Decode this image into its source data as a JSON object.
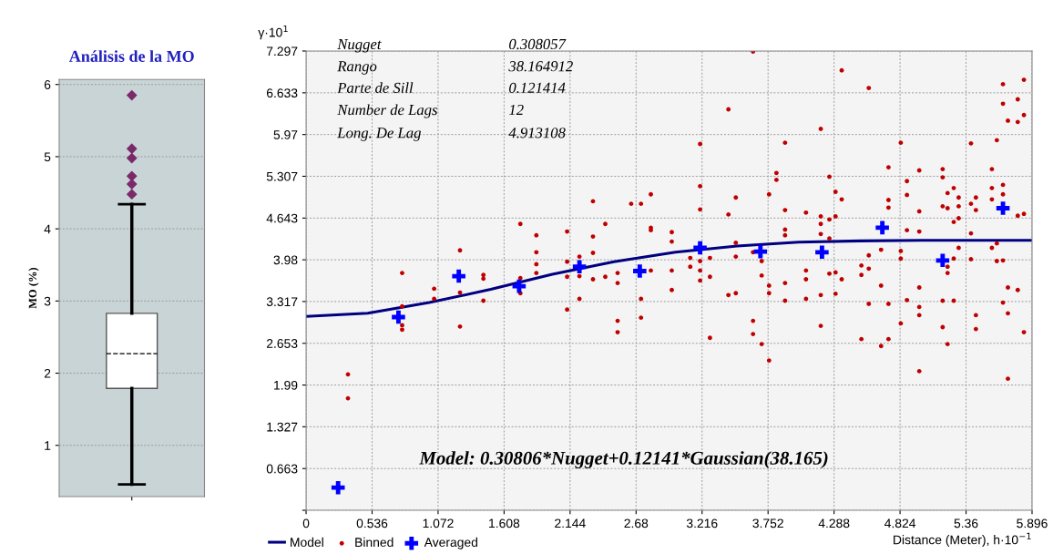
{
  "chart_data": [
    {
      "type": "box",
      "title": "Análisis de la MO",
      "ylabel": "MO (%)",
      "categories": [
        null
      ],
      "boxes": [
        {
          "low": 0.46,
          "q1": 1.79,
          "median": 2.27,
          "q3": 2.83,
          "high": 4.34,
          "outliers": [
            5.85,
            5.11,
            4.98,
            4.73,
            4.62,
            4.48
          ]
        }
      ],
      "ylim": [
        0.29,
        6.07
      ],
      "yticks": [
        1,
        2,
        3,
        4,
        5,
        6
      ],
      "grid": "y",
      "tick_labels": "y"
    },
    {
      "type": "scatter",
      "xlabel": "Distance (Meter), h·10$^{−1}$",
      "ylabel": "γ·10$^{1}$",
      "xlim": [
        0,
        5.896
      ],
      "xticks": [
        0,
        0.536,
        1.072,
        1.608,
        2.144,
        2.68,
        3.216,
        3.752,
        4.288,
        4.824,
        5.36,
        5.896
      ],
      "ylim": [
        0,
        7.297
      ],
      "yticks": [
        {
          "value": 0,
          "label": null
        },
        0.663,
        1.327,
        1.99,
        2.653,
        3.317,
        3.98,
        4.643,
        5.307,
        5.97,
        6.633,
        7.297
      ],
      "grid": true,
      "legend": "bottom",
      "annotations": [
        "Nugget",
        "0.308057",
        "Rango",
        "38.164912",
        "Parte de Sill",
        "0.121414",
        "Number de Lags",
        "12",
        "Long. De Lag",
        "4.913108",
        "Model: 0.30806*Nugget+0.12141*Gaussian(38.165)"
      ],
      "series": [
        {
          "name": "Model",
          "type": "line",
          "color": "#000080",
          "marker": "none",
          "x": [
            0,
            0.5,
            1.0,
            1.5,
            2.0,
            2.5,
            3.0,
            3.5,
            4.0,
            4.5,
            5.0,
            5.896
          ],
          "values": [
            3.08,
            3.13,
            3.3,
            3.51,
            3.75,
            3.95,
            4.1,
            4.2,
            4.26,
            4.28,
            4.29,
            4.29
          ]
        },
        {
          "name": "Binned",
          "type": "scatter",
          "color": "#c00000",
          "marker": "circle",
          "x": [
            0.34,
            0.34,
            0.78,
            0.78,
            0.78,
            0.78,
            1.04,
            1.04,
            1.25,
            1.25,
            1.25,
            1.44,
            1.44,
            1.44,
            1.74,
            1.74,
            1.74,
            1.87,
            1.87,
            1.87,
            1.87,
            2.12,
            2.12,
            2.12,
            2.12,
            2.22,
            2.22,
            2.22,
            2.33,
            2.33,
            2.33,
            2.33,
            2.43,
            2.43,
            2.53,
            2.53,
            2.53,
            2.53,
            2.64,
            2.72,
            2.72,
            2.72,
            2.8,
            2.8,
            2.8,
            2.8,
            2.97,
            2.97,
            2.97,
            2.97,
            3.12,
            3.12,
            3.2,
            3.2,
            3.2,
            3.2,
            3.2,
            3.2,
            3.28,
            3.28,
            3.28,
            3.43,
            3.43,
            3.43,
            3.49,
            3.49,
            3.49,
            3.49,
            3.63,
            3.63,
            3.63,
            3.63,
            3.7,
            3.7,
            3.7,
            3.76,
            3.76,
            3.76,
            3.76,
            3.82,
            3.82,
            3.89,
            3.89,
            3.89,
            3.89,
            3.89,
            3.89,
            4.06,
            4.06,
            4.06,
            4.06,
            4.18,
            4.18,
            4.18,
            4.18,
            4.18,
            4.18,
            4.25,
            4.25,
            4.25,
            4.25,
            4.3,
            4.3,
            4.3,
            4.3,
            4.35,
            4.35,
            4.35,
            4.51,
            4.51,
            4.51,
            4.57,
            4.57,
            4.57,
            4.57,
            4.67,
            4.67,
            4.67,
            4.73,
            4.73,
            4.73,
            4.73,
            4.73,
            4.83,
            4.83,
            4.83,
            4.83,
            4.88,
            4.88,
            4.88,
            4.88,
            4.98,
            4.98,
            4.98,
            4.98,
            4.98,
            4.98,
            4.98,
            5.17,
            5.17,
            5.17,
            5.17,
            5.17,
            5.21,
            5.21,
            5.21,
            5.21,
            5.21,
            5.26,
            5.26,
            5.26,
            5.26,
            5.3,
            5.3,
            5.3,
            5.3,
            5.4,
            5.4,
            5.4,
            5.4,
            5.44,
            5.44,
            5.44,
            5.44,
            5.57,
            5.57,
            5.57,
            5.57,
            5.61,
            5.61,
            5.61,
            5.66,
            5.66,
            5.66,
            5.66,
            5.66,
            5.66,
            5.7,
            5.7,
            5.7,
            5.7,
            5.78,
            5.78,
            5.78,
            5.78,
            5.83,
            5.83,
            5.83,
            5.83
          ],
          "values": [
            2.16,
            1.78,
            3.77,
            3.24,
            2.94,
            2.87,
            3.52,
            3.36,
            4.13,
            3.46,
            2.92,
            3.74,
            3.68,
            3.33,
            4.55,
            3.69,
            3.45,
            4.37,
            4.1,
            3.91,
            3.77,
            4.43,
            3.95,
            3.71,
            3.19,
            4.03,
            3.72,
            3.36,
            4.91,
            4.35,
            4.09,
            3.67,
            4.55,
            3.71,
            3.77,
            3.61,
            3.01,
            2.83,
            4.87,
            4.87,
            3.36,
            3.06,
            5.02,
            4.49,
            4.45,
            3.81,
            4.42,
            4.27,
            3.81,
            3.5,
            4.01,
            3.87,
            5.82,
            5.15,
            4.78,
            3.96,
            3.81,
            3.65,
            4.01,
            3.71,
            2.74,
            6.37,
            4.7,
            3.42,
            4.97,
            4.25,
            4.03,
            3.45,
            7.29,
            4.1,
            3.01,
            2.8,
            3.96,
            3.73,
            2.64,
            5.02,
            3.57,
            2.38,
            3.45,
            5.36,
            5.25,
            5.84,
            4.77,
            4.46,
            4.37,
            3.61,
            3.33,
            4.73,
            3.81,
            3.67,
            3.36,
            6.06,
            4.67,
            4.55,
            4.39,
            2.93,
            3.42,
            5.3,
            4.62,
            4.32,
            3.76,
            5.06,
            4.67,
            3.78,
            3.44,
            6.99,
            4.94,
            3.67,
            3.89,
            3.74,
            2.72,
            6.71,
            4.05,
            3.84,
            3.28,
            4.14,
            3.57,
            2.61,
            5.45,
            4.93,
            4.81,
            2.72,
            3.28,
            5.84,
            4.12,
            4.0,
            2.97,
            5.23,
            5.01,
            4.45,
            3.34,
            5.4,
            4.75,
            4.43,
            3.54,
            3.23,
            3.1,
            2.21,
            5.42,
            5.29,
            4.83,
            3.33,
            2.91,
            5.04,
            4.8,
            3.87,
            3.77,
            2.64,
            5.12,
            4.58,
            4.0,
            3.33,
            4.97,
            4.83,
            4.64,
            4.17,
            5.83,
            4.87,
            4.4,
            3.99,
            4.97,
            4.77,
            3.1,
            2.88,
            5.42,
            5.12,
            4.94,
            4.17,
            5.88,
            4.24,
            3.96,
            6.77,
            6.46,
            5.17,
            5.02,
            3.97,
            3.3,
            6.19,
            3.54,
            3.13,
            2.09,
            6.53,
            6.17,
            4.68,
            3.5,
            6.84,
            6.28,
            4.71,
            2.83
          ]
        },
        {
          "name": "Averaged",
          "type": "scatter",
          "color": "#0000ff",
          "marker": "cross",
          "x": [
            0.26,
            0.75,
            1.24,
            1.73,
            2.22,
            2.71,
            3.2,
            3.69,
            4.19,
            4.68,
            5.17,
            5.66
          ],
          "values": [
            0.36,
            3.07,
            3.72,
            3.56,
            3.87,
            3.8,
            4.17,
            4.11,
            4.1,
            4.49,
            3.97,
            4.8
          ]
        }
      ]
    }
  ]
}
